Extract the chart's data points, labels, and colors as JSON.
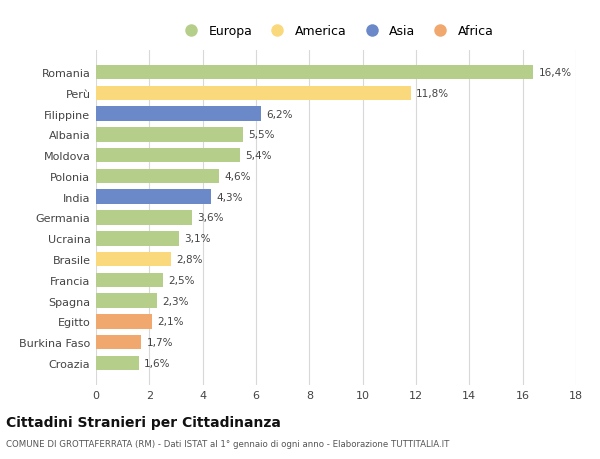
{
  "countries": [
    "Romania",
    "Perù",
    "Filippine",
    "Albania",
    "Moldova",
    "Polonia",
    "India",
    "Germania",
    "Ucraina",
    "Brasile",
    "Francia",
    "Spagna",
    "Egitto",
    "Burkina Faso",
    "Croazia"
  ],
  "values": [
    16.4,
    11.8,
    6.2,
    5.5,
    5.4,
    4.6,
    4.3,
    3.6,
    3.1,
    2.8,
    2.5,
    2.3,
    2.1,
    1.7,
    1.6
  ],
  "labels": [
    "16,4%",
    "11,8%",
    "6,2%",
    "5,5%",
    "5,4%",
    "4,6%",
    "4,3%",
    "3,6%",
    "3,1%",
    "2,8%",
    "2,5%",
    "2,3%",
    "2,1%",
    "1,7%",
    "1,6%"
  ],
  "continents": [
    "Europa",
    "America",
    "Asia",
    "Europa",
    "Europa",
    "Europa",
    "Asia",
    "Europa",
    "Europa",
    "America",
    "Europa",
    "Europa",
    "Africa",
    "Africa",
    "Europa"
  ],
  "colors": {
    "Europa": "#b5cf8a",
    "America": "#fad87c",
    "Asia": "#6b88c9",
    "Africa": "#f0a86e"
  },
  "legend_order": [
    "Europa",
    "America",
    "Asia",
    "Africa"
  ],
  "legend_colors": [
    "#b5cf8a",
    "#fad87c",
    "#6b88c9",
    "#f0a86e"
  ],
  "title": "Cittadini Stranieri per Cittadinanza",
  "subtitle": "COMUNE DI GROTTAFERRATA (RM) - Dati ISTAT al 1° gennaio di ogni anno - Elaborazione TUTTITALIA.IT",
  "xlim": [
    0,
    18
  ],
  "xticks": [
    0,
    2,
    4,
    6,
    8,
    10,
    12,
    14,
    16,
    18
  ],
  "background_color": "#ffffff",
  "grid_color": "#d8d8d8",
  "bar_height": 0.7
}
